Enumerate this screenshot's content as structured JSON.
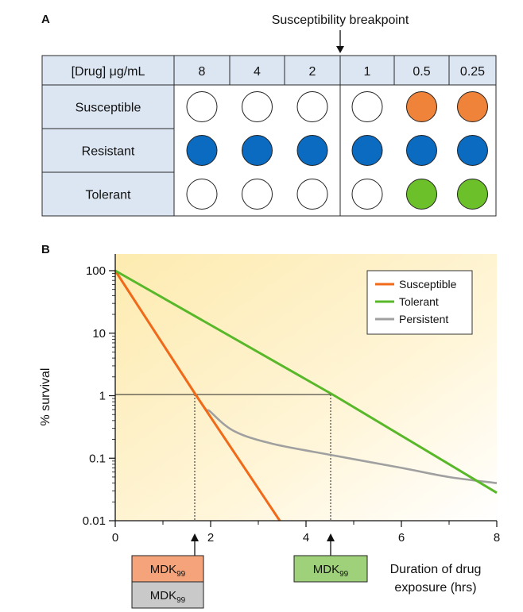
{
  "panel_a": {
    "label": "A",
    "breakpoint_label": "Susceptibility breakpoint",
    "header_label_prefix": "[Drug] ",
    "header_label_unit": "μg/mL",
    "concentrations": [
      "8",
      "4",
      "2",
      "1",
      "0.5",
      "0.25"
    ],
    "rows": [
      {
        "label": "Susceptible",
        "wells": [
          "empty",
          "empty",
          "empty",
          "empty",
          "orange",
          "orange"
        ]
      },
      {
        "label": "Resistant",
        "wells": [
          "blue",
          "blue",
          "blue",
          "blue",
          "blue",
          "blue"
        ]
      },
      {
        "label": "Tolerant",
        "wells": [
          "empty",
          "empty",
          "empty",
          "empty",
          "green",
          "green"
        ]
      }
    ],
    "colors": {
      "orange": "#f0833a",
      "blue": "#0a6bc0",
      "green": "#6cc02a",
      "empty": "#ffffff",
      "header_fill": "#dce6f2"
    }
  },
  "panel_b": {
    "label": "B",
    "ylabel": "% survival",
    "xlabel_line1": "Duration of drug",
    "xlabel_line2": "exposure (hrs)",
    "y_ticks": [
      "100",
      "10",
      "1",
      "0.1",
      "0.01"
    ],
    "x_ticks": [
      "0",
      "2",
      "4",
      "6",
      "8"
    ],
    "legend": [
      {
        "name": "Susceptible",
        "color": "#f06a1a"
      },
      {
        "name": "Tolerant",
        "color": "#58b82a"
      },
      {
        "name": "Persistent",
        "color": "#a0a0a0"
      }
    ],
    "mdk": [
      {
        "text": "MDK",
        "sub": "99",
        "fill": "#f4a37a"
      },
      {
        "text": "MDK",
        "sub": "99",
        "fill": "#c9c9c9"
      },
      {
        "text": "MDK",
        "sub": "99",
        "fill": "#9fd07a"
      }
    ]
  },
  "chart_data": {
    "type": "line",
    "xlabel": "Duration of drug exposure (hrs)",
    "ylabel": "% survival",
    "xlim": [
      0,
      8
    ],
    "ylim": [
      0.01,
      100
    ],
    "y_scale": "log",
    "legend_position": "top-right",
    "series": [
      {
        "name": "Susceptible",
        "x": [
          0,
          1.7,
          3.45
        ],
        "y": [
          100,
          1,
          0.01
        ]
      },
      {
        "name": "Tolerant",
        "x": [
          0,
          4.6,
          8.0
        ],
        "y": [
          100,
          1,
          0.028
        ]
      },
      {
        "name": "Persistent",
        "x": [
          0,
          1.7,
          2.0,
          2.5,
          3.3,
          4.6,
          6.0,
          7.0,
          8.0
        ],
        "y": [
          100,
          1,
          0.55,
          0.27,
          0.17,
          0.11,
          0.07,
          0.05,
          0.04
        ]
      }
    ]
  }
}
